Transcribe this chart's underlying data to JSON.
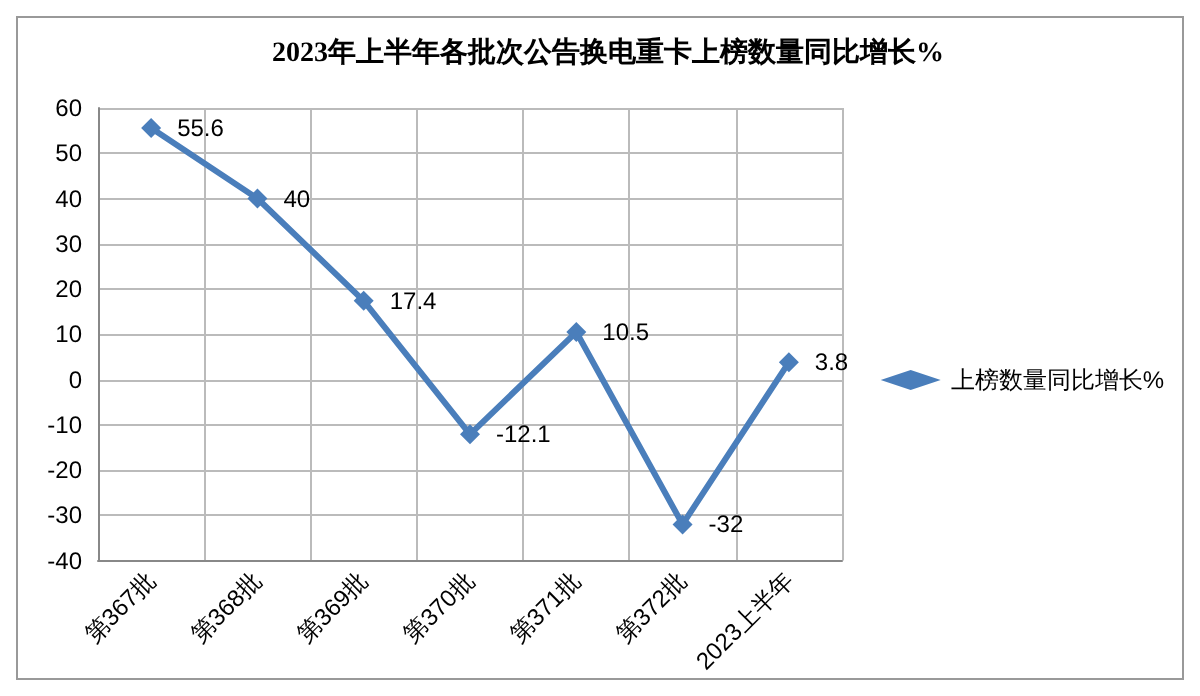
{
  "chart_data": {
    "type": "line",
    "title": "2023年上半年各批次公告换电重卡上榜数量同比增长%",
    "categories": [
      "第367批",
      "第368批",
      "第369批",
      "第370批",
      "第371批",
      "第372批",
      "2023上半年"
    ],
    "series": [
      {
        "name": "上榜数量同比增长%",
        "color": "#4a7ebb",
        "values": [
          55.6,
          40,
          17.4,
          -12.1,
          10.5,
          -32,
          3.8
        ]
      }
    ],
    "ylim": [
      -40,
      60
    ],
    "yticks": [
      -40,
      -30,
      -20,
      -10,
      0,
      10,
      20,
      30,
      40,
      50,
      60
    ],
    "grid": true,
    "legend": "right",
    "marker": "diamond",
    "line_style": "solid",
    "data_labels": true
  }
}
